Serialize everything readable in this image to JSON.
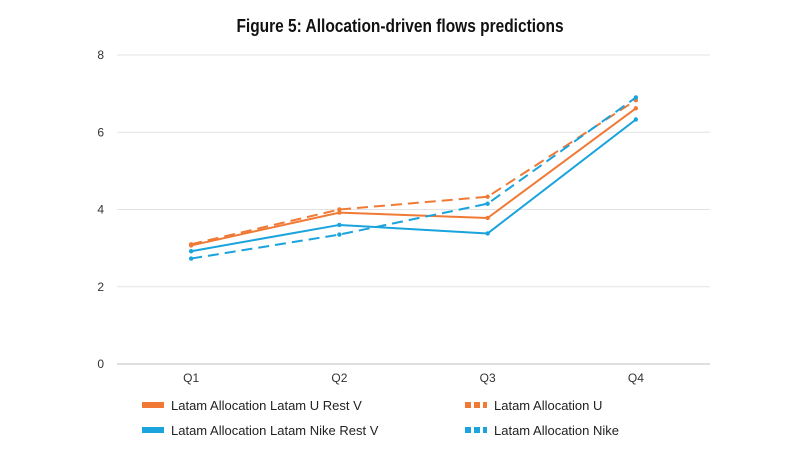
{
  "chart_data": {
    "type": "line",
    "title": "Figure 5: Allocation-driven flows predictions",
    "xlabel": "",
    "ylabel": "",
    "categories": [
      "Q1",
      "Q2",
      "Q3",
      "Q4"
    ],
    "ylim": [
      0,
      8
    ],
    "yticks": [
      "0",
      "2",
      "4",
      "6",
      "8"
    ],
    "grid": true,
    "legend_position": "bottom",
    "series": [
      {
        "name": "Latam Allocation Latam U Rest V",
        "values": [
          3.07,
          3.92,
          3.78,
          6.62
        ],
        "color": "#f07a35",
        "style": "solid"
      },
      {
        "name": "Latam Allocation U",
        "values": [
          3.1,
          4.0,
          4.33,
          6.83
        ],
        "color": "#f07a35",
        "style": "dashed"
      },
      {
        "name": "Latam Allocation Latam Nike Rest V",
        "values": [
          2.92,
          3.6,
          3.38,
          6.33
        ],
        "color": "#1aa3dc",
        "style": "solid"
      },
      {
        "name": "Latam Allocation Nike",
        "values": [
          2.73,
          3.35,
          4.15,
          6.9
        ],
        "color": "#1aa3dc",
        "style": "dashed"
      }
    ]
  }
}
